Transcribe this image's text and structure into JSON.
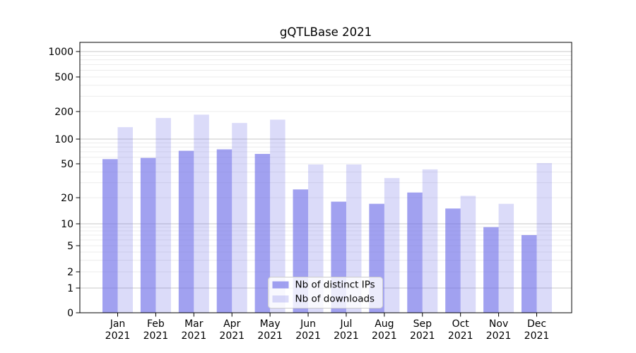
{
  "chart_data": {
    "type": "bar",
    "title": "gQTLBase 2021",
    "categories": [
      "Jan 2021",
      "Feb 2021",
      "Mar 2021",
      "Apr 2021",
      "May 2021",
      "Jun 2021",
      "Jul 2021",
      "Aug 2021",
      "Sep 2021",
      "Oct 2021",
      "Nov 2021",
      "Dec 2021"
    ],
    "series": [
      {
        "name": "Nb of distinct IPs",
        "values": [
          57,
          59,
          72,
          75,
          66,
          25,
          18,
          17,
          23,
          15,
          9,
          7
        ]
      },
      {
        "name": "Nb of downloads",
        "values": [
          135,
          170,
          185,
          150,
          163,
          49,
          49,
          34,
          43,
          21,
          17,
          51
        ]
      }
    ],
    "xlabel": "",
    "ylabel": "",
    "y_axis": {
      "scale": "symlog",
      "tick_labels": [
        "0",
        "1",
        "2",
        "5",
        "10",
        "20",
        "50",
        "100",
        "200",
        "500",
        "1000"
      ],
      "tick_values": [
        0,
        1,
        2,
        5,
        10,
        20,
        50,
        100,
        200,
        500,
        1000
      ],
      "ylim": [
        0,
        1000
      ]
    },
    "grid": true,
    "legend": {
      "position": "lower-center",
      "entries": [
        "Nb of distinct IPs",
        "Nb of downloads"
      ]
    }
  },
  "colors": {
    "bar_base": "#6e6ee8",
    "series_opacity": [
      0.65,
      0.25
    ],
    "grid_major": "#c9c9c9",
    "grid_minor": "#ececec",
    "axis": "#000000",
    "background": "#ffffff",
    "legend_border": "#cccccc",
    "legend_background": "#ffffff"
  }
}
